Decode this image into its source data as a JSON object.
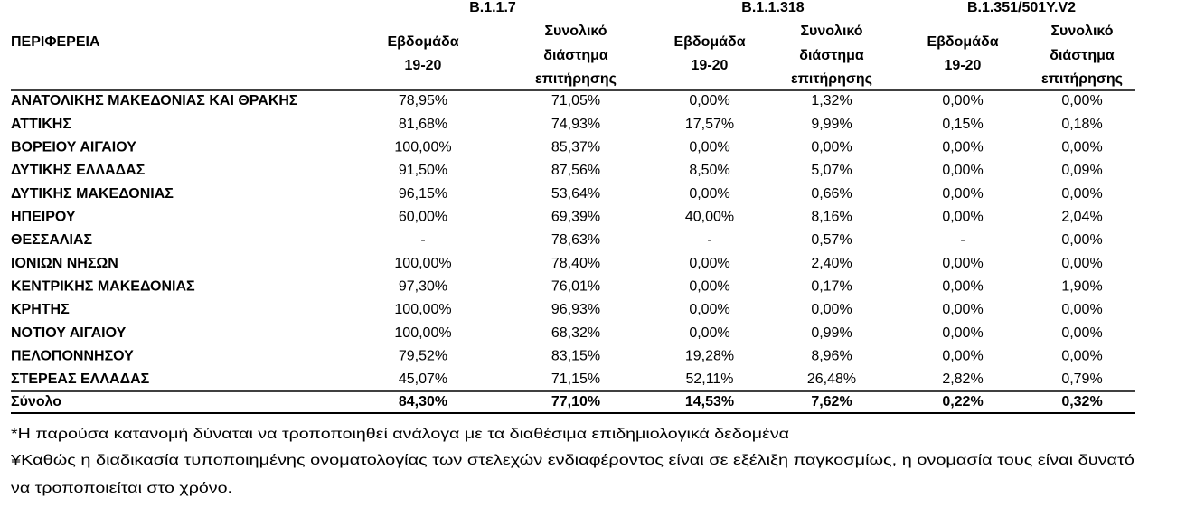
{
  "groups": [
    "B.1.1.7",
    "B.1.1.318",
    "B.1.351/501Y.V2"
  ],
  "header": {
    "region": "ΠΕΡΙΦΕΡΕΙΑ",
    "columns": [
      [
        "Εβδομάδα",
        "19-20"
      ],
      [
        "Συνολικό",
        "διάστημα",
        "επιτήρησης"
      ],
      [
        "Εβδομάδα",
        "19-20"
      ],
      [
        "Συνολικό",
        "διάστημα",
        "επιτήρησης"
      ],
      [
        "Εβδομάδα",
        "19-20"
      ],
      [
        "Συνολικό",
        "διάστημα",
        "επιτήρησης"
      ]
    ]
  },
  "rows": [
    [
      "ΑΝΑΤΟΛΙΚΗΣ ΜΑΚΕΔΟΝΙΑΣ ΚΑΙ ΘΡΑΚΗΣ",
      "78,95%",
      "71,05%",
      "0,00%",
      "1,32%",
      "0,00%",
      "0,00%"
    ],
    [
      "ΑΤΤΙΚΗΣ",
      "81,68%",
      "74,93%",
      "17,57%",
      "9,99%",
      "0,15%",
      "0,18%"
    ],
    [
      "ΒΟΡΕΙΟΥ ΑΙΓΑΙΟΥ",
      "100,00%",
      "85,37%",
      "0,00%",
      "0,00%",
      "0,00%",
      "0,00%"
    ],
    [
      "ΔΥΤΙΚΗΣ ΕΛΛΑΔΑΣ",
      "91,50%",
      "87,56%",
      "8,50%",
      "5,07%",
      "0,00%",
      "0,09%"
    ],
    [
      "ΔΥΤΙΚΗΣ ΜΑΚΕΔΟΝΙΑΣ",
      "96,15%",
      "53,64%",
      "0,00%",
      "0,66%",
      "0,00%",
      "0,00%"
    ],
    [
      "ΗΠΕΙΡΟΥ",
      "60,00%",
      "69,39%",
      "40,00%",
      "8,16%",
      "0,00%",
      "2,04%"
    ],
    [
      "ΘΕΣΣΑΛΙΑΣ",
      "-",
      "78,63%",
      "-",
      "0,57%",
      "-",
      "0,00%"
    ],
    [
      "ΙΟΝΙΩΝ ΝΗΣΩΝ",
      "100,00%",
      "78,40%",
      "0,00%",
      "2,40%",
      "0,00%",
      "0,00%"
    ],
    [
      "ΚΕΝΤΡΙΚΗΣ ΜΑΚΕΔΟΝΙΑΣ",
      "97,30%",
      "76,01%",
      "0,00%",
      "0,17%",
      "0,00%",
      "1,90%"
    ],
    [
      "ΚΡΗΤΗΣ",
      "100,00%",
      "96,93%",
      "0,00%",
      "0,00%",
      "0,00%",
      "0,00%"
    ],
    [
      "ΝΟΤΙΟΥ ΑΙΓΑΙΟΥ",
      "100,00%",
      "68,32%",
      "0,00%",
      "0,99%",
      "0,00%",
      "0,00%"
    ],
    [
      "ΠΕΛΟΠΟΝΝΗΣΟΥ",
      "79,52%",
      "83,15%",
      "19,28%",
      "8,96%",
      "0,00%",
      "0,00%"
    ],
    [
      "ΣΤΕΡΕΑΣ ΕΛΛΑΔΑΣ",
      "45,07%",
      "71,15%",
      "52,11%",
      "26,48%",
      "2,82%",
      "0,79%"
    ]
  ],
  "total": [
    "Σύνολο",
    "84,30%",
    "77,10%",
    "14,53%",
    "7,62%",
    "0,22%",
    "0,32%"
  ],
  "footnotes": [
    "*Η παρούσα κατανομή δύναται να τροποποιηθεί ανάλογα με τα διαθέσιμα επιδημιολογικά δεδομένα",
    "¥Καθώς η διαδικασία τυποποιημένης ονοματολογίας των στελεχών ενδιαφέροντος είναι σε εξέλιξη παγκοσμίως, η ονομασία τους είναι δυνατό",
    "να τροποποιείται στο χρόνο."
  ]
}
